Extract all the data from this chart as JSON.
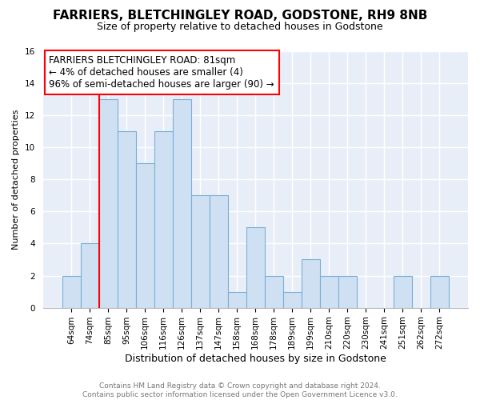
{
  "title": "FARRIERS, BLETCHINGLEY ROAD, GODSTONE, RH9 8NB",
  "subtitle": "Size of property relative to detached houses in Godstone",
  "xlabel": "Distribution of detached houses by size in Godstone",
  "ylabel": "Number of detached properties",
  "bar_labels": [
    "64sqm",
    "74sqm",
    "85sqm",
    "95sqm",
    "106sqm",
    "116sqm",
    "126sqm",
    "137sqm",
    "147sqm",
    "158sqm",
    "168sqm",
    "178sqm",
    "189sqm",
    "199sqm",
    "210sqm",
    "220sqm",
    "230sqm",
    "241sqm",
    "251sqm",
    "262sqm",
    "272sqm"
  ],
  "bar_values": [
    2,
    4,
    13,
    11,
    9,
    11,
    13,
    7,
    7,
    1,
    5,
    2,
    1,
    3,
    2,
    2,
    0,
    0,
    2,
    0,
    2
  ],
  "bar_color": "#cfe0f3",
  "bar_edge_color": "#7aafd4",
  "ylim": [
    0,
    16
  ],
  "yticks": [
    0,
    2,
    4,
    6,
    8,
    10,
    12,
    14,
    16
  ],
  "property_line_x": 1.5,
  "annotation_title": "FARRIERS BLETCHINGLEY ROAD: 81sqm",
  "annotation_line1": "← 4% of detached houses are smaller (4)",
  "annotation_line2": "96% of semi-detached houses are larger (90) →",
  "footer_line1": "Contains HM Land Registry data © Crown copyright and database right 2024.",
  "footer_line2": "Contains public sector information licensed under the Open Government Licence v3.0.",
  "bg_color": "#ffffff",
  "plot_bg_color": "#e8eef8",
  "grid_color": "#ffffff",
  "footer_color": "#777777",
  "annotation_fontsize": 8.5,
  "title_fontsize": 11,
  "subtitle_fontsize": 9,
  "xlabel_fontsize": 9,
  "ylabel_fontsize": 8,
  "tick_fontsize": 7.5,
  "footer_fontsize": 6.5
}
